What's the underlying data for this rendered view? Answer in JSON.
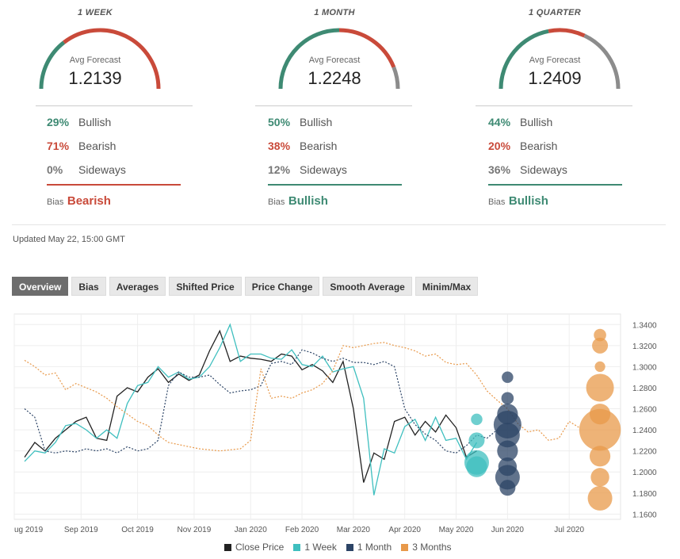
{
  "gauges": [
    {
      "period": "1 WEEK",
      "avg_label": "Avg Forecast",
      "avg_value": "1.2139",
      "bullish_pct": 29,
      "bearish_pct": 71,
      "sideways_pct": 0,
      "bullish": {
        "pct": "29%",
        "label": "Bullish"
      },
      "bearish": {
        "pct": "71%",
        "label": "Bearish"
      },
      "sideways": {
        "pct": "0%",
        "label": "Sideways"
      },
      "bias_label": "Bias",
      "bias_value": "Bearish",
      "bias_color": "#c94a3a"
    },
    {
      "period": "1 MONTH",
      "avg_label": "Avg Forecast",
      "avg_value": "1.2248",
      "bullish_pct": 50,
      "bearish_pct": 38,
      "sideways_pct": 12,
      "bullish": {
        "pct": "50%",
        "label": "Bullish"
      },
      "bearish": {
        "pct": "38%",
        "label": "Bearish"
      },
      "sideways": {
        "pct": "12%",
        "label": "Sideways"
      },
      "bias_label": "Bias",
      "bias_value": "Bullish",
      "bias_color": "#3e8a73"
    },
    {
      "period": "1 QUARTER",
      "avg_label": "Avg Forecast",
      "avg_value": "1.2409",
      "bullish_pct": 44,
      "bearish_pct": 20,
      "sideways_pct": 36,
      "bullish": {
        "pct": "44%",
        "label": "Bullish"
      },
      "bearish": {
        "pct": "20%",
        "label": "Bearish"
      },
      "sideways": {
        "pct": "36%",
        "label": "Sideways"
      },
      "bias_label": "Bias",
      "bias_value": "Bullish",
      "bias_color": "#3e8a73"
    }
  ],
  "colors": {
    "bullish": "#3e8a73",
    "bearish": "#c94a3a",
    "sideways": "#8c8c8c"
  },
  "updated": "Updated May 22, 15:00 GMT",
  "tabs": [
    "Overview",
    "Bias",
    "Averages",
    "Shifted Price",
    "Price Change",
    "Smooth Average",
    "Minim/Max"
  ],
  "active_tab": "Overview",
  "chart_data": {
    "type": "line",
    "x_range": [
      0,
      11.8
    ],
    "xtick_labels": [
      "ug 2019",
      "Sep 2019",
      "Oct 2019",
      "Nov 2019",
      "Jan 2020",
      "Feb 2020",
      "Mar 2020",
      "Apr 2020",
      "May 2020",
      "Jun 2020",
      "Jul 2020"
    ],
    "xtick_values": [
      0,
      1.3,
      2.4,
      3.5,
      4.6,
      5.6,
      6.6,
      7.6,
      8.6,
      9.6,
      10.8
    ],
    "ylim": [
      1.155,
      1.35
    ],
    "yticks": [
      "1.1600",
      "1.1800",
      "1.2000",
      "1.2200",
      "1.2400",
      "1.2600",
      "1.2800",
      "1.3000",
      "1.3200",
      "1.3400"
    ],
    "series": [
      {
        "name": "Close Price",
        "color": "#222222",
        "dashed": false,
        "points": [
          [
            0.2,
            1.214
          ],
          [
            0.4,
            1.228
          ],
          [
            0.6,
            1.22
          ],
          [
            0.8,
            1.232
          ],
          [
            1.0,
            1.24
          ],
          [
            1.2,
            1.248
          ],
          [
            1.4,
            1.252
          ],
          [
            1.6,
            1.232
          ],
          [
            1.8,
            1.23
          ],
          [
            2.0,
            1.272
          ],
          [
            2.2,
            1.28
          ],
          [
            2.4,
            1.276
          ],
          [
            2.6,
            1.29
          ],
          [
            2.8,
            1.298
          ],
          [
            3.0,
            1.285
          ],
          [
            3.2,
            1.293
          ],
          [
            3.4,
            1.287
          ],
          [
            3.6,
            1.292
          ],
          [
            3.8,
            1.315
          ],
          [
            4.0,
            1.334
          ],
          [
            4.2,
            1.305
          ],
          [
            4.4,
            1.31
          ],
          [
            4.6,
            1.308
          ],
          [
            4.8,
            1.307
          ],
          [
            5.0,
            1.305
          ],
          [
            5.2,
            1.312
          ],
          [
            5.4,
            1.31
          ],
          [
            5.6,
            1.297
          ],
          [
            5.8,
            1.302
          ],
          [
            6.0,
            1.296
          ],
          [
            6.2,
            1.285
          ],
          [
            6.4,
            1.305
          ],
          [
            6.6,
            1.26
          ],
          [
            6.8,
            1.19
          ],
          [
            7.0,
            1.218
          ],
          [
            7.2,
            1.212
          ],
          [
            7.4,
            1.248
          ],
          [
            7.6,
            1.252
          ],
          [
            7.8,
            1.235
          ],
          [
            8.0,
            1.248
          ],
          [
            8.2,
            1.238
          ],
          [
            8.4,
            1.254
          ],
          [
            8.6,
            1.242
          ],
          [
            8.8,
            1.214
          ],
          [
            9.0,
            1.22
          ]
        ]
      },
      {
        "name": "1 Week",
        "color": "#3fbfbf",
        "dashed": false,
        "points": [
          [
            0.2,
            1.21
          ],
          [
            0.4,
            1.22
          ],
          [
            0.6,
            1.218
          ],
          [
            0.8,
            1.228
          ],
          [
            1.0,
            1.244
          ],
          [
            1.2,
            1.246
          ],
          [
            1.4,
            1.24
          ],
          [
            1.6,
            1.232
          ],
          [
            1.8,
            1.24
          ],
          [
            2.0,
            1.232
          ],
          [
            2.2,
            1.265
          ],
          [
            2.4,
            1.282
          ],
          [
            2.6,
            1.285
          ],
          [
            2.8,
            1.3
          ],
          [
            3.0,
            1.29
          ],
          [
            3.2,
            1.295
          ],
          [
            3.4,
            1.288
          ],
          [
            3.6,
            1.29
          ],
          [
            3.8,
            1.3
          ],
          [
            4.0,
            1.318
          ],
          [
            4.2,
            1.34
          ],
          [
            4.4,
            1.305
          ],
          [
            4.6,
            1.312
          ],
          [
            4.8,
            1.312
          ],
          [
            5.0,
            1.308
          ],
          [
            5.2,
            1.307
          ],
          [
            5.4,
            1.316
          ],
          [
            5.6,
            1.302
          ],
          [
            5.8,
            1.3
          ],
          [
            6.0,
            1.31
          ],
          [
            6.2,
            1.295
          ],
          [
            6.4,
            1.298
          ],
          [
            6.6,
            1.3
          ],
          [
            6.8,
            1.27
          ],
          [
            7.0,
            1.178
          ],
          [
            7.2,
            1.222
          ],
          [
            7.4,
            1.218
          ],
          [
            7.6,
            1.243
          ],
          [
            7.8,
            1.25
          ],
          [
            8.0,
            1.23
          ],
          [
            8.2,
            1.252
          ],
          [
            8.4,
            1.23
          ],
          [
            8.6,
            1.232
          ],
          [
            8.8,
            1.212
          ],
          [
            9.0,
            1.228
          ]
        ]
      },
      {
        "name": "1 Month",
        "color": "#2c4466",
        "dashed": true,
        "points": [
          [
            0.2,
            1.26
          ],
          [
            0.4,
            1.252
          ],
          [
            0.6,
            1.22
          ],
          [
            0.8,
            1.218
          ],
          [
            1.0,
            1.22
          ],
          [
            1.2,
            1.219
          ],
          [
            1.4,
            1.222
          ],
          [
            1.6,
            1.22
          ],
          [
            1.8,
            1.222
          ],
          [
            2.0,
            1.218
          ],
          [
            2.2,
            1.224
          ],
          [
            2.4,
            1.22
          ],
          [
            2.6,
            1.222
          ],
          [
            2.8,
            1.23
          ],
          [
            3.0,
            1.282
          ],
          [
            3.2,
            1.295
          ],
          [
            3.4,
            1.29
          ],
          [
            3.6,
            1.29
          ],
          [
            3.8,
            1.292
          ],
          [
            4.0,
            1.283
          ],
          [
            4.2,
            1.275
          ],
          [
            4.4,
            1.277
          ],
          [
            4.6,
            1.278
          ],
          [
            4.8,
            1.282
          ],
          [
            5.0,
            1.303
          ],
          [
            5.2,
            1.305
          ],
          [
            5.4,
            1.302
          ],
          [
            5.6,
            1.316
          ],
          [
            5.8,
            1.313
          ],
          [
            6.0,
            1.308
          ],
          [
            6.2,
            1.305
          ],
          [
            6.4,
            1.308
          ],
          [
            6.6,
            1.304
          ],
          [
            6.8,
            1.304
          ],
          [
            7.0,
            1.302
          ],
          [
            7.2,
            1.305
          ],
          [
            7.4,
            1.3
          ],
          [
            7.6,
            1.26
          ],
          [
            7.8,
            1.245
          ],
          [
            8.0,
            1.236
          ],
          [
            8.2,
            1.23
          ],
          [
            8.4,
            1.22
          ],
          [
            8.6,
            1.218
          ],
          [
            8.8,
            1.225
          ],
          [
            9.0,
            1.235
          ],
          [
            9.2,
            1.232
          ],
          [
            9.4,
            1.24
          ]
        ]
      },
      {
        "name": "3 Months",
        "color": "#e8994a",
        "dashed": true,
        "points": [
          [
            0.2,
            1.306
          ],
          [
            0.4,
            1.3
          ],
          [
            0.6,
            1.292
          ],
          [
            0.8,
            1.294
          ],
          [
            1.0,
            1.278
          ],
          [
            1.2,
            1.284
          ],
          [
            1.4,
            1.28
          ],
          [
            1.6,
            1.276
          ],
          [
            1.8,
            1.27
          ],
          [
            2.0,
            1.262
          ],
          [
            2.2,
            1.255
          ],
          [
            2.4,
            1.248
          ],
          [
            2.6,
            1.244
          ],
          [
            2.8,
            1.235
          ],
          [
            3.0,
            1.228
          ],
          [
            3.2,
            1.226
          ],
          [
            3.4,
            1.224
          ],
          [
            3.6,
            1.222
          ],
          [
            3.8,
            1.221
          ],
          [
            4.0,
            1.22
          ],
          [
            4.2,
            1.221
          ],
          [
            4.4,
            1.222
          ],
          [
            4.6,
            1.23
          ],
          [
            4.8,
            1.298
          ],
          [
            5.0,
            1.27
          ],
          [
            5.2,
            1.272
          ],
          [
            5.4,
            1.27
          ],
          [
            5.6,
            1.275
          ],
          [
            5.8,
            1.278
          ],
          [
            6.0,
            1.284
          ],
          [
            6.2,
            1.296
          ],
          [
            6.4,
            1.32
          ],
          [
            6.6,
            1.318
          ],
          [
            6.8,
            1.32
          ],
          [
            7.0,
            1.322
          ],
          [
            7.2,
            1.323
          ],
          [
            7.4,
            1.32
          ],
          [
            7.6,
            1.318
          ],
          [
            7.8,
            1.315
          ],
          [
            8.0,
            1.31
          ],
          [
            8.2,
            1.312
          ],
          [
            8.4,
            1.304
          ],
          [
            8.6,
            1.302
          ],
          [
            8.8,
            1.303
          ],
          [
            9.0,
            1.292
          ],
          [
            9.2,
            1.277
          ],
          [
            9.4,
            1.268
          ],
          [
            9.6,
            1.26
          ],
          [
            9.8,
            1.246
          ],
          [
            10.0,
            1.238
          ],
          [
            10.2,
            1.24
          ],
          [
            10.4,
            1.23
          ],
          [
            10.6,
            1.232
          ],
          [
            10.8,
            1.248
          ],
          [
            11.0,
            1.242
          ]
        ]
      }
    ],
    "bubbles": [
      {
        "series": "1 Week",
        "color": "#3fbfbf",
        "x": 9.0,
        "values": [
          1.23,
          1.209,
          1.205
        ],
        "counts": [
          1,
          3,
          2
        ]
      },
      {
        "series": "1 Week",
        "color": "#3fbfbf",
        "x": 9.0,
        "values": [
          1.25
        ],
        "counts": [
          0.4
        ]
      },
      {
        "series": "1 Month",
        "color": "#2c4466",
        "x": 9.6,
        "values": [
          1.29,
          1.27,
          1.255,
          1.245,
          1.235,
          1.22,
          1.205,
          1.195,
          1.185
        ],
        "counts": [
          0.4,
          0.5,
          2,
          4,
          3,
          2,
          1.5,
          3,
          1
        ]
      },
      {
        "series": "3 Months",
        "color": "#e8994a",
        "x": 11.4,
        "values": [
          1.33,
          1.32,
          1.3,
          1.28,
          1.255,
          1.24,
          1.215,
          1.195,
          1.175
        ],
        "counts": [
          0.5,
          1,
          0.3,
          4,
          2,
          10,
          2,
          1.5,
          3
        ]
      }
    ],
    "legend": [
      "Close Price",
      "1 Week",
      "1 Month",
      "3 Months"
    ]
  }
}
